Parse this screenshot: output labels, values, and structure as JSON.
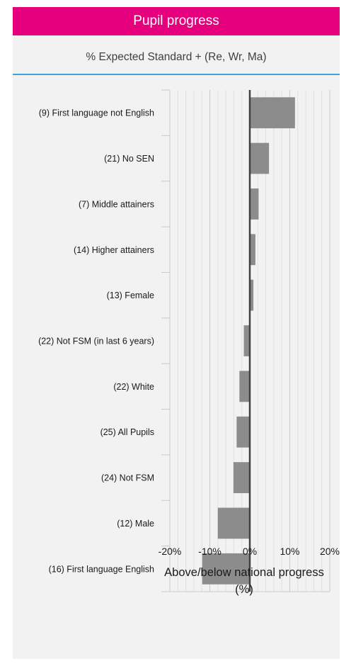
{
  "header": {
    "title": "Pupil progress"
  },
  "subtitle": "% Expected Standard + (Re, Wr, Ma)",
  "chart_data": {
    "type": "bar",
    "orientation": "horizontal",
    "categories": [
      "(9) First language not English",
      "(21) No SEN",
      "(7) Middle attainers",
      "(14) Higher attainers",
      "(13) Female",
      "(22) Not FSM (in last 6 years)",
      "(22) White",
      "(25) All Pupils",
      "(24) Not FSM",
      "(12) Male",
      "(16) First language English"
    ],
    "values": [
      11.3,
      4.8,
      2.2,
      1.4,
      0.9,
      -1.5,
      -2.6,
      -3.3,
      -4.1,
      -8.0,
      -11.9
    ],
    "xlim": [
      -20,
      20
    ],
    "xticks": [
      "-20%",
      "-10%",
      "0%",
      "10%",
      "20%"
    ],
    "xlabel": "Above/below national progress (%)",
    "bar_color": "#8c8c8c",
    "grid": "vertical"
  }
}
